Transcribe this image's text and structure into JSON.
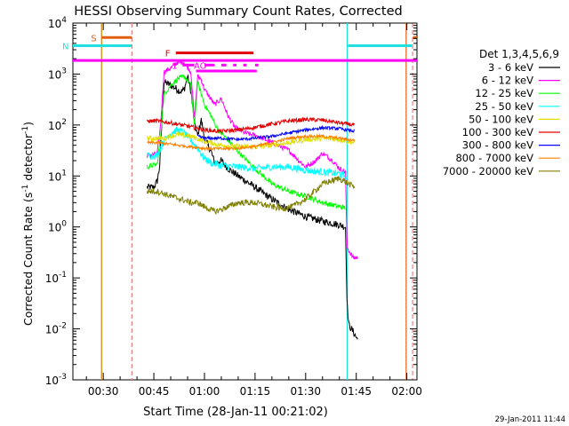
{
  "chart_data": {
    "type": "line",
    "title": "HESSI Observing Summary Count Rates, Corrected",
    "xlabel": "Start Time (28-Jan-11 00:21:02)",
    "ylabel_main": "Corrected Count Rate (s",
    "ylabel_sup1": "-1",
    "ylabel_mid": " detector",
    "ylabel_sup2": "-1",
    "ylabel_end": ")",
    "y_scale": "log",
    "ylim": [
      0.001,
      10000
    ],
    "xlim": [
      21.0,
      123.0
    ],
    "x_unit": "minutes after 00:00 UT",
    "x_ticks": [
      {
        "v": 30,
        "label": "00:30"
      },
      {
        "v": 45,
        "label": "00:45"
      },
      {
        "v": 60,
        "label": "01:00"
      },
      {
        "v": 75,
        "label": "01:15"
      },
      {
        "v": 90,
        "label": "01:30"
      },
      {
        "v": 105,
        "label": "01:45"
      },
      {
        "v": 120,
        "label": "02:00"
      }
    ],
    "y_ticks": [
      {
        "v": 10000,
        "base": "10",
        "exp": "4"
      },
      {
        "v": 1000,
        "base": "10",
        "exp": "3"
      },
      {
        "v": 100,
        "base": "10",
        "exp": "2"
      },
      {
        "v": 10,
        "base": "10",
        "exp": "1"
      },
      {
        "v": 1,
        "base": "10",
        "exp": "0"
      },
      {
        "v": 0.1,
        "base": "10",
        "exp": "-1"
      },
      {
        "v": 0.01,
        "base": "10",
        "exp": "-2"
      },
      {
        "v": 0.001,
        "base": "10",
        "exp": "-3"
      }
    ],
    "legend_title": "Det 1,3,4,5,6,9",
    "legend_position": "right",
    "timestamp": "29-Jan-2011 11:44",
    "flags": [
      {
        "label": "S",
        "color": "#e06010",
        "y": 5200,
        "segments": [
          [
            29.5,
            38.5
          ],
          [
            121.8,
            123.0
          ]
        ]
      },
      {
        "label": "N",
        "color": "#20e0e0",
        "y": 3600,
        "segments": [
          [
            21.0,
            38.5
          ],
          [
            102.5,
            121.5
          ]
        ]
      },
      {
        "label": "F",
        "color": "#e00000",
        "y": 2600,
        "segments": [
          [
            51.5,
            74.5
          ]
        ]
      },
      {
        "label": "",
        "color": "#ff00ff",
        "y": 1850,
        "segments": [
          [
            21.0,
            123.0
          ]
        ]
      },
      {
        "label": "1",
        "color": "#ff00ff",
        "y": 1500,
        "segments": [
          [
            53.5,
            57.0
          ]
        ]
      },
      {
        "label": "AO",
        "color": "#ff00ff",
        "y": 1500,
        "segments": [
          [
            60.0,
            63.0
          ],
          [
            65.0,
            66.5
          ],
          [
            68.5,
            69.5
          ],
          [
            71.5,
            72.5
          ],
          [
            75.0,
            76.0
          ]
        ]
      },
      {
        "label": "",
        "color": "#ff00ff",
        "y": 1150,
        "segments": [
          [
            57.5,
            75.5
          ]
        ]
      }
    ],
    "night_lines": [
      {
        "x": 29.5,
        "color": "#d08000"
      },
      {
        "x": 38.5,
        "color": "#f08080",
        "dash": true
      },
      {
        "x": 102.3,
        "color": "#20e0e0"
      },
      {
        "x": 119.8,
        "color": "#e06010"
      },
      {
        "x": 121.7,
        "color": "#f08080",
        "dash": true
      }
    ],
    "series": [
      {
        "name": "3 - 6 keV",
        "color": "#000000",
        "noise": 0.07,
        "x": [
          43,
          44,
          45,
          46,
          46.7,
          48,
          49,
          51,
          53,
          54,
          55,
          56,
          57,
          58,
          59,
          60,
          61,
          62,
          63,
          65,
          67,
          70,
          75,
          80,
          85,
          90,
          95,
          100,
          101.8,
          102.3,
          102.8,
          104,
          105.5
        ],
        "y": [
          6,
          6,
          6,
          8,
          15,
          700,
          650,
          550,
          450,
          500,
          900,
          450,
          110,
          60,
          130,
          55,
          40,
          30,
          18,
          20,
          14,
          10,
          6,
          3.5,
          2.2,
          1.6,
          1.3,
          1.1,
          1.0,
          0.03,
          0.012,
          0.009,
          0.006
        ]
      },
      {
        "name": "6 - 12 keV",
        "color": "#ff00ff",
        "noise": 0.05,
        "x": [
          43,
          46,
          47,
          48,
          50,
          52,
          54,
          56,
          57,
          58,
          59,
          60,
          61,
          63,
          65,
          67,
          69,
          72,
          76,
          80,
          85,
          88,
          90,
          93,
          95,
          98,
          100,
          101.8,
          102.3,
          104,
          105.5
        ],
        "y": [
          25,
          27,
          100,
          1100,
          1300,
          1700,
          1700,
          1100,
          130,
          900,
          800,
          500,
          400,
          250,
          330,
          150,
          90,
          70,
          60,
          45,
          32,
          20,
          15,
          20,
          28,
          20,
          14,
          12,
          0.4,
          0.25,
          0.25
        ]
      },
      {
        "name": "12 - 25 keV",
        "color": "#00ff00",
        "noise": 0.05,
        "x": [
          43,
          46,
          47,
          48,
          50,
          52,
          54,
          56,
          57,
          58,
          60,
          62,
          64,
          66,
          70,
          75,
          80,
          85,
          90,
          95,
          100,
          101.8
        ],
        "y": [
          15,
          17,
          60,
          400,
          600,
          800,
          900,
          600,
          90,
          700,
          250,
          150,
          80,
          60,
          30,
          14,
          7,
          5,
          4,
          3,
          2.5,
          2.4
        ]
      },
      {
        "name": "25 - 50 keV",
        "color": "#00ffff",
        "noise": 0.07,
        "x": [
          43,
          46,
          48,
          50,
          52,
          54,
          56,
          58,
          60,
          62,
          65,
          70,
          75,
          80,
          85,
          90,
          95,
          100,
          101.8
        ],
        "y": [
          25,
          25,
          50,
          70,
          80,
          70,
          50,
          35,
          22,
          18,
          16,
          15,
          14,
          15,
          15,
          13,
          12,
          11,
          10
        ]
      },
      {
        "name": "50 - 100 keV",
        "color": "#e0e000",
        "noise": 0.05,
        "x": [
          43,
          46,
          48,
          50,
          52,
          56,
          60,
          65,
          70,
          75,
          80,
          85,
          90,
          95,
          100,
          104.5
        ],
        "y": [
          55,
          55,
          55,
          60,
          65,
          60,
          48,
          40,
          38,
          37,
          40,
          45,
          52,
          55,
          52,
          45
        ]
      },
      {
        "name": "100 - 300 keV",
        "color": "#e00000",
        "noise": 0.04,
        "x": [
          43,
          46,
          50,
          55,
          60,
          65,
          70,
          75,
          80,
          85,
          90,
          95,
          100,
          104.5
        ],
        "y": [
          120,
          120,
          110,
          95,
          80,
          75,
          80,
          90,
          105,
          120,
          128,
          125,
          110,
          100
        ]
      },
      {
        "name": "300 - 800 keV",
        "color": "#0000ff",
        "noise": 0.03,
        "x": [
          58,
          60,
          65,
          70,
          75,
          80,
          85,
          90,
          95,
          100,
          104.5
        ],
        "y": [
          60,
          55,
          55,
          52,
          55,
          60,
          70,
          80,
          88,
          85,
          75
        ]
      },
      {
        "name": "800 - 7000 keV",
        "color": "#ff8000",
        "noise": 0.03,
        "x": [
          43,
          46,
          50,
          55,
          60,
          65,
          70,
          75,
          80,
          85,
          90,
          95,
          100,
          104.5
        ],
        "y": [
          45,
          45,
          42,
          38,
          35,
          34,
          35,
          38,
          45,
          55,
          60,
          60,
          55,
          50
        ]
      },
      {
        "name": "7000 - 20000 keV",
        "color": "#808000",
        "noise": 0.06,
        "x": [
          43,
          46,
          48,
          50,
          53,
          56,
          58,
          60,
          63,
          65,
          67,
          70,
          75,
          80,
          83,
          86,
          90,
          95,
          100,
          104.5
        ],
        "y": [
          5,
          5,
          4.5,
          4,
          3.5,
          3,
          3,
          2.5,
          2,
          2.2,
          2.5,
          3,
          3,
          2.5,
          2.3,
          2.5,
          3.5,
          7,
          9,
          6
        ]
      }
    ]
  }
}
